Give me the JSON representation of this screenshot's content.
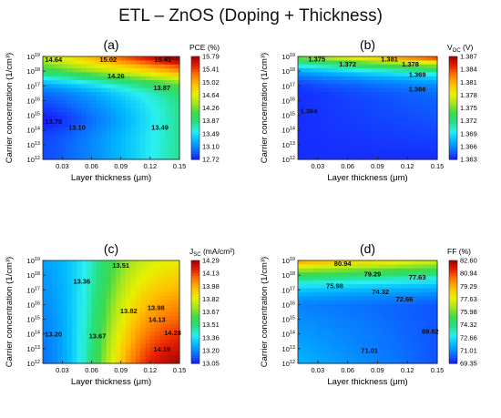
{
  "figure_title": "ETL – ZnOS (Doping + Thickness)",
  "colormap": [
    "#1a1aff",
    "#0a72ff",
    "#00b8ff",
    "#2af0f0",
    "#25e07c",
    "#3fd94a",
    "#a6e620",
    "#e8f000",
    "#ffc000",
    "#ff7a00",
    "#e81e00",
    "#a00000"
  ],
  "chart_data": [
    {
      "type": "heatmap",
      "panel_label": "(a)",
      "colorbar_title": "PCE (%)",
      "colorbar_ticks": [
        "12.72",
        "13.10",
        "13.49",
        "13.87",
        "14.26",
        "14.64",
        "15.02",
        "15.41",
        "15.79"
      ],
      "colorbar_range": [
        12.72,
        15.79
      ],
      "xlabel": "Layer thickness (μm)",
      "ylabel": "Carrier concentration (1/cm³)",
      "x_ticks": [
        "0.03",
        "0.06",
        "0.09",
        "0.12",
        "0.15"
      ],
      "x_range": [
        0.01,
        0.15
      ],
      "y_scale": "log",
      "y_ticks": [
        "12",
        "13",
        "14",
        "15",
        "16",
        "17",
        "18",
        "19"
      ],
      "y_range": [
        1000000000000.0,
        1e+19
      ],
      "contour_labels": [
        {
          "text": "14.64",
          "x": 0.021,
          "y": 18.8
        },
        {
          "text": "15.02",
          "x": 0.077,
          "y": 18.8
        },
        {
          "text": "15.41",
          "x": 0.133,
          "y": 18.8
        },
        {
          "text": "14.26",
          "x": 0.085,
          "y": 17.7
        },
        {
          "text": "13.87",
          "x": 0.132,
          "y": 16.9
        },
        {
          "text": "13.78",
          "x": 0.021,
          "y": 14.6
        },
        {
          "text": "13.10",
          "x": 0.045,
          "y": 14.2
        },
        {
          "text": "13.49",
          "x": 0.13,
          "y": 14.2
        }
      ]
    },
    {
      "type": "heatmap",
      "panel_label": "(b)",
      "colorbar_title": "V",
      "colorbar_title_sub": "OC",
      "colorbar_title_unit": " (V)",
      "colorbar_ticks": [
        "1.363",
        "1.366",
        "1.369",
        "1.372",
        "1.375",
        "1.378",
        "1.381",
        "1.384",
        "1.387"
      ],
      "colorbar_range": [
        1.363,
        1.387
      ],
      "xlabel": "Layer thickness (μm)",
      "ylabel": "Carrier concentration (1/cm³)",
      "x_ticks": [
        "0.03",
        "0.06",
        "0.09",
        "0.12",
        "0.15"
      ],
      "x_range": [
        0.01,
        0.15
      ],
      "y_scale": "log",
      "y_ticks": [
        "12",
        "13",
        "14",
        "15",
        "16",
        "17",
        "18",
        "19"
      ],
      "y_range": [
        1000000000000.0,
        1e+19
      ],
      "contour_labels": [
        {
          "text": "1.375",
          "x": 0.029,
          "y": 18.85
        },
        {
          "text": "1.381",
          "x": 0.102,
          "y": 18.85
        },
        {
          "text": "1.372",
          "x": 0.06,
          "y": 18.5
        },
        {
          "text": "1.378",
          "x": 0.123,
          "y": 18.5
        },
        {
          "text": "1.369",
          "x": 0.13,
          "y": 17.8
        },
        {
          "text": "1.366",
          "x": 0.13,
          "y": 16.8
        },
        {
          "text": "1.364",
          "x": 0.021,
          "y": 15.3
        }
      ]
    },
    {
      "type": "heatmap",
      "panel_label": "(c)",
      "colorbar_title": "J",
      "colorbar_title_sub": "SC",
      "colorbar_title_unit": " (mA/cm²)",
      "colorbar_ticks": [
        "13.05",
        "13.20",
        "13.36",
        "13.51",
        "13.67",
        "13.82",
        "13.98",
        "14.13",
        "14.29"
      ],
      "colorbar_range": [
        13.05,
        14.29
      ],
      "xlabel": "Layer thickness (μm)",
      "ylabel": "Carrier concentration (1/cm³)",
      "x_ticks": [
        "0.03",
        "0.06",
        "0.09",
        "0.12",
        "0.15"
      ],
      "x_range": [
        0.01,
        0.15
      ],
      "y_scale": "log",
      "y_ticks": [
        "12",
        "13",
        "14",
        "15",
        "16",
        "17",
        "18",
        "19"
      ],
      "y_range": [
        1000000000000.0,
        1e+19
      ],
      "contour_labels": [
        {
          "text": "13.51",
          "x": 0.09,
          "y": 18.7
        },
        {
          "text": "13.36",
          "x": 0.05,
          "y": 17.6
        },
        {
          "text": "13.98",
          "x": 0.126,
          "y": 15.8
        },
        {
          "text": "13.82",
          "x": 0.098,
          "y": 15.6
        },
        {
          "text": "14.13",
          "x": 0.127,
          "y": 15.0
        },
        {
          "text": "14.28",
          "x": 0.143,
          "y": 14.1
        },
        {
          "text": "13.20",
          "x": 0.021,
          "y": 14.0
        },
        {
          "text": "13.67",
          "x": 0.066,
          "y": 13.9
        },
        {
          "text": "14.19",
          "x": 0.132,
          "y": 13.0
        }
      ]
    },
    {
      "type": "heatmap",
      "panel_label": "(d)",
      "colorbar_title": "FF (%)",
      "colorbar_ticks": [
        "69.35",
        "71.01",
        "72.66",
        "74.32",
        "75.98",
        "77.63",
        "79.29",
        "80.94",
        "82.60"
      ],
      "colorbar_range": [
        69.35,
        82.6
      ],
      "xlabel": "Layer thickness (μm)",
      "ylabel": "Carrier concentration (1/cm³)",
      "x_ticks": [
        "0.03",
        "0.06",
        "0.09",
        "0.12",
        "0.15"
      ],
      "x_range": [
        0.01,
        0.15
      ],
      "y_scale": "log",
      "y_ticks": [
        "12",
        "13",
        "14",
        "15",
        "16",
        "17",
        "18",
        "19"
      ],
      "y_range": [
        1000000000000.0,
        1e+19
      ],
      "contour_labels": [
        {
          "text": "80.94",
          "x": 0.055,
          "y": 18.8
        },
        {
          "text": "79.29",
          "x": 0.085,
          "y": 18.1
        },
        {
          "text": "77.63",
          "x": 0.13,
          "y": 17.9
        },
        {
          "text": "75.98",
          "x": 0.047,
          "y": 17.3
        },
        {
          "text": "74.32",
          "x": 0.093,
          "y": 16.9
        },
        {
          "text": "72.66",
          "x": 0.117,
          "y": 16.4
        },
        {
          "text": "69.62",
          "x": 0.143,
          "y": 14.2
        },
        {
          "text": "71.01",
          "x": 0.082,
          "y": 12.9
        }
      ]
    }
  ]
}
